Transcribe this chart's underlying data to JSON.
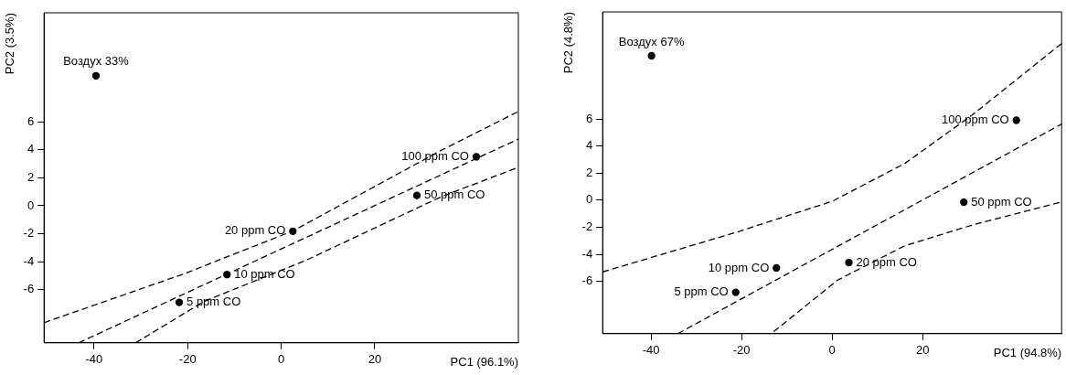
{
  "chart_data": [
    {
      "type": "scatter",
      "xlabel": "PC1 (96.1%)",
      "ylabel": "PC2 (3.5%)",
      "xlim": [
        -50.7,
        50.7
      ],
      "ylim": [
        -9.8,
        13.8
      ],
      "xticks": [
        -40,
        -20,
        0,
        20
      ],
      "yticks": [
        -6,
        -4,
        -2,
        0,
        2,
        4,
        6
      ],
      "grid": false,
      "series": [
        {
          "type": "scatter",
          "color": "#000000",
          "marker": "circle",
          "x": [
            -39.6,
            41.7,
            29.0,
            2.5,
            -11.6,
            -21.8
          ],
          "values": [
            9.3,
            3.5,
            0.74,
            -1.82,
            -4.92,
            -6.91
          ]
        },
        {
          "type": "line",
          "color": "#000000",
          "line_style": "dashed",
          "marker": "none",
          "x": [
            -43.3,
            50.7
          ],
          "values": [
            -9.8,
            4.77
          ]
        },
        {
          "type": "line",
          "color": "#000000",
          "line_style": "dashed",
          "marker": "none",
          "x": [
            -50.7,
            -20.8,
            2.5,
            34.3,
            50.7
          ],
          "values": [
            -8.36,
            -4.87,
            -1.8,
            3.98,
            6.74
          ]
        },
        {
          "type": "line",
          "color": "#000000",
          "line_style": "dashed",
          "marker": "none",
          "x": [
            -31.1,
            -16.5,
            5.3,
            34.3,
            50.7
          ],
          "values": [
            -9.8,
            -6.84,
            -3.9,
            0.66,
            2.75
          ]
        }
      ],
      "annotations": [
        {
          "text": "Воздух 33%",
          "x": -39.6,
          "y": 9.3
        },
        {
          "text": "100 ppm CO",
          "x": 41.7,
          "y": 3.5
        },
        {
          "text": "50 ppm CO",
          "x": 29.0,
          "y": 0.74
        },
        {
          "text": "20 ppm CO",
          "x": 2.5,
          "y": -1.82
        },
        {
          "text": "10 ppm CO",
          "x": -11.6,
          "y": -4.92
        },
        {
          "text": "5 ppm CO",
          "x": -21.8,
          "y": -6.91
        }
      ]
    },
    {
      "type": "scatter",
      "xlabel": "PC1 (94.8%)",
      "ylabel": "PC2 (4.8%)",
      "xlim": [
        -50.7,
        50.7
      ],
      "ylim": [
        -9.85,
        13.9
      ],
      "xticks": [
        -40,
        -20,
        0,
        20
      ],
      "yticks": [
        -6,
        -4,
        -2,
        0,
        2,
        4,
        6
      ],
      "grid": false,
      "series": [
        {
          "type": "scatter",
          "color": "#000000",
          "marker": "circle",
          "x": [
            -39.9,
            40.7,
            29.1,
            3.7,
            -12.3,
            -21.3
          ],
          "values": [
            10.66,
            5.9,
            -0.15,
            -4.6,
            -5.0,
            -6.8
          ]
        },
        {
          "type": "line",
          "color": "#000000",
          "line_style": "dashed",
          "marker": "none",
          "x": [
            -34.1,
            50.7
          ],
          "values": [
            -9.85,
            5.62
          ]
        },
        {
          "type": "line",
          "color": "#000000",
          "line_style": "dashed",
          "marker": "none",
          "x": [
            -50.7,
            -21,
            0,
            16,
            30.8,
            50.7
          ],
          "values": [
            -5.29,
            -2.35,
            -0.08,
            2.7,
            6.25,
            11.57
          ]
        },
        {
          "type": "line",
          "color": "#000000",
          "line_style": "dashed",
          "marker": "none",
          "x": [
            -12.9,
            1.2,
            16,
            30.8,
            50.7
          ],
          "values": [
            -9.7,
            -5.9,
            -3.37,
            -1.85,
            -0.13
          ]
        }
      ],
      "annotations": [
        {
          "text": "Воздух 67%",
          "x": -39.9,
          "y": 10.66
        },
        {
          "text": "100 ppm CO",
          "x": 40.7,
          "y": 5.9
        },
        {
          "text": "50 ppm CO",
          "x": 29.1,
          "y": -0.15
        },
        {
          "text": "20 ppm CO",
          "x": 3.7,
          "y": -4.6
        },
        {
          "text": "10 ppm CO",
          "x": -12.3,
          "y": -5.0
        },
        {
          "text": "5 ppm CO",
          "x": -21.3,
          "y": -6.8
        }
      ]
    }
  ]
}
